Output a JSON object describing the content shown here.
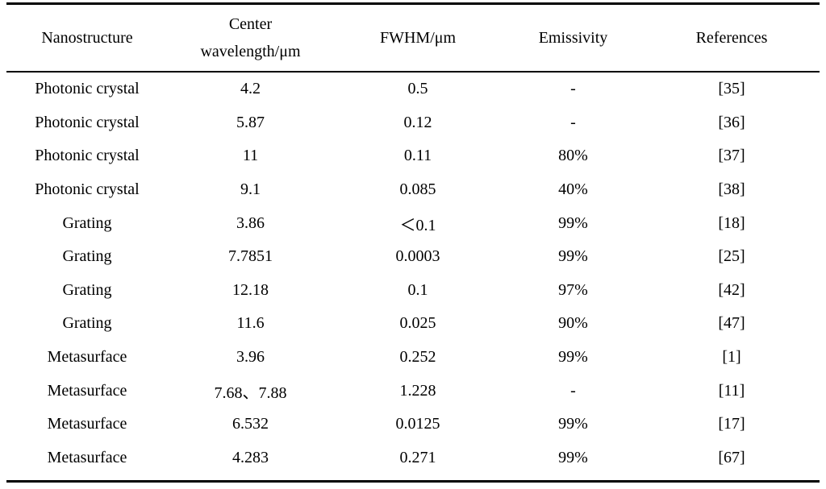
{
  "table": {
    "headers": {
      "nanostructure": "Nanostructure",
      "center_line1": "Center",
      "center_line2": "wavelength/μm",
      "fwhm": "FWHM/μm",
      "emissivity": "Emissivity",
      "references": "References"
    },
    "rows": [
      {
        "nanostructure": "Photonic crystal",
        "center": "4.2",
        "fwhm": "0.5",
        "emissivity": "-",
        "ref": "[35]"
      },
      {
        "nanostructure": "Photonic crystal",
        "center": "5.87",
        "fwhm": "0.12",
        "emissivity": "-",
        "ref": "[36]"
      },
      {
        "nanostructure": "Photonic crystal",
        "center": "11",
        "fwhm": "0.11",
        "emissivity": "80%",
        "ref": "[37]"
      },
      {
        "nanostructure": "Photonic crystal",
        "center": "9.1",
        "fwhm": "0.085",
        "emissivity": "40%",
        "ref": "[38]"
      },
      {
        "nanostructure": "Grating",
        "center": "3.86",
        "fwhm": "＜0.1",
        "emissivity": "99%",
        "ref": "[18]"
      },
      {
        "nanostructure": "Grating",
        "center": "7.7851",
        "fwhm": "0.0003",
        "emissivity": "99%",
        "ref": "[25]"
      },
      {
        "nanostructure": "Grating",
        "center": "12.18",
        "fwhm": "0.1",
        "emissivity": "97%",
        "ref": "[42]"
      },
      {
        "nanostructure": "Grating",
        "center": "11.6",
        "fwhm": "0.025",
        "emissivity": "90%",
        "ref": "[47]"
      },
      {
        "nanostructure": "Metasurface",
        "center": "3.96",
        "fwhm": "0.252",
        "emissivity": "99%",
        "ref": "[1]"
      },
      {
        "nanostructure": "Metasurface",
        "center": "7.68、7.88",
        "fwhm": "1.228",
        "emissivity": "-",
        "ref": "[11]"
      },
      {
        "nanostructure": "Metasurface",
        "center": "6.532",
        "fwhm": "0.0125",
        "emissivity": "99%",
        "ref": "[17]"
      },
      {
        "nanostructure": "Metasurface",
        "center": "4.283",
        "fwhm": "0.271",
        "emissivity": "99%",
        "ref": "[67]"
      }
    ]
  }
}
